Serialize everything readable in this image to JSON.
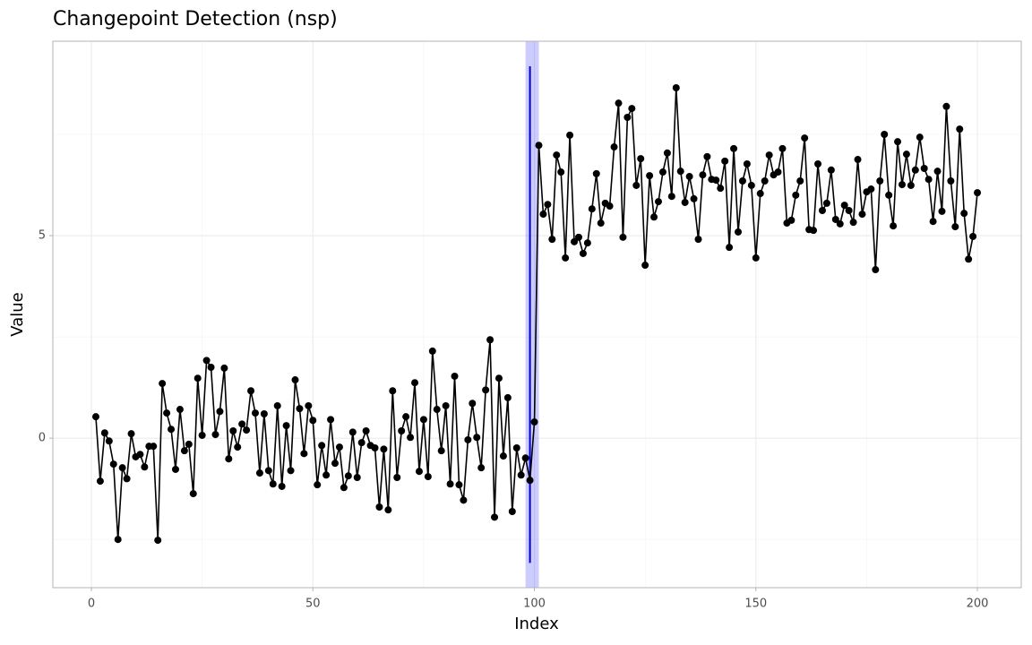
{
  "chart_data": {
    "type": "line",
    "title": "Changepoint Detection (nsp)",
    "xlabel": "Index",
    "ylabel": "Value",
    "x": [
      1,
      2,
      3,
      4,
      5,
      6,
      7,
      8,
      9,
      10,
      11,
      12,
      13,
      14,
      15,
      16,
      17,
      18,
      19,
      20,
      21,
      22,
      23,
      24,
      25,
      26,
      27,
      28,
      29,
      30,
      31,
      32,
      33,
      34,
      35,
      36,
      37,
      38,
      39,
      40,
      41,
      42,
      43,
      44,
      45,
      46,
      47,
      48,
      49,
      50,
      51,
      52,
      53,
      54,
      55,
      56,
      57,
      58,
      59,
      60,
      61,
      62,
      63,
      64,
      65,
      66,
      67,
      68,
      69,
      70,
      71,
      72,
      73,
      74,
      75,
      76,
      77,
      78,
      79,
      80,
      81,
      82,
      83,
      84,
      85,
      86,
      87,
      88,
      89,
      90,
      91,
      92,
      93,
      94,
      95,
      96,
      97,
      98,
      99,
      100,
      101,
      102,
      103,
      104,
      105,
      106,
      107,
      108,
      109,
      110,
      111,
      112,
      113,
      114,
      115,
      116,
      117,
      118,
      119,
      120,
      121,
      122,
      123,
      124,
      125,
      126,
      127,
      128,
      129,
      130,
      131,
      132,
      133,
      134,
      135,
      136,
      137,
      138,
      139,
      140,
      141,
      142,
      143,
      144,
      145,
      146,
      147,
      148,
      149,
      150,
      151,
      152,
      153,
      154,
      155,
      156,
      157,
      158,
      159,
      160,
      161,
      162,
      163,
      164,
      165,
      166,
      167,
      168,
      169,
      170,
      171,
      172,
      173,
      174,
      175,
      176,
      177,
      178,
      179,
      180,
      181,
      182,
      183,
      184,
      185,
      186,
      187,
      188,
      189,
      190,
      191,
      192,
      193,
      194,
      195,
      196,
      197,
      198,
      199,
      200
    ],
    "series": [
      {
        "color": "#000000",
        "values": [
          0.53,
          -1.06,
          0.13,
          -0.07,
          -0.64,
          -2.5,
          -0.73,
          -1.0,
          0.11,
          -0.46,
          -0.4,
          -0.71,
          -0.2,
          -0.2,
          -2.52,
          1.35,
          0.62,
          0.22,
          -0.77,
          0.71,
          -0.31,
          -0.15,
          -1.37,
          1.48,
          0.07,
          1.92,
          1.75,
          0.09,
          0.66,
          1.73,
          -0.51,
          0.18,
          -0.22,
          0.35,
          0.2,
          1.17,
          0.62,
          -0.86,
          0.6,
          -0.8,
          -1.13,
          0.8,
          -1.19,
          0.31,
          -0.8,
          1.44,
          0.73,
          -0.38,
          0.8,
          0.44,
          -1.15,
          -0.18,
          -0.91,
          0.46,
          -0.62,
          -0.22,
          -1.22,
          -0.93,
          0.15,
          -0.97,
          -0.11,
          0.18,
          -0.18,
          -0.24,
          -1.7,
          -0.27,
          -1.77,
          1.17,
          -0.97,
          0.18,
          0.53,
          0.02,
          1.37,
          -0.82,
          0.46,
          -0.95,
          2.15,
          0.71,
          -0.31,
          0.8,
          -1.13,
          1.53,
          -1.15,
          -1.53,
          -0.04,
          0.86,
          0.02,
          -0.73,
          1.19,
          2.43,
          -1.95,
          1.48,
          -0.44,
          1.0,
          -1.81,
          -0.24,
          -0.91,
          -0.49,
          -1.04,
          0.4,
          7.23,
          5.53,
          5.77,
          4.91,
          6.99,
          6.57,
          4.45,
          7.48,
          4.85,
          4.96,
          4.56,
          4.82,
          5.66,
          6.53,
          5.31,
          5.8,
          5.73,
          7.19,
          8.27,
          4.96,
          7.92,
          8.14,
          6.24,
          6.9,
          4.27,
          6.48,
          5.46,
          5.84,
          6.57,
          7.04,
          5.97,
          8.65,
          6.59,
          5.82,
          6.46,
          5.91,
          4.91,
          6.5,
          6.95,
          6.39,
          6.37,
          6.17,
          6.84,
          4.71,
          7.15,
          5.09,
          6.35,
          6.77,
          6.24,
          4.45,
          6.04,
          6.35,
          6.99,
          6.5,
          6.57,
          7.15,
          5.31,
          5.38,
          6.0,
          6.35,
          7.41,
          5.15,
          5.13,
          6.77,
          5.62,
          5.8,
          6.62,
          5.4,
          5.29,
          5.75,
          5.62,
          5.33,
          6.88,
          5.53,
          6.08,
          6.15,
          4.16,
          6.35,
          7.5,
          6.0,
          5.24,
          7.32,
          6.26,
          7.01,
          6.24,
          6.62,
          7.43,
          6.66,
          6.39,
          5.35,
          6.59,
          5.6,
          8.19,
          6.35,
          5.22,
          7.63,
          5.55,
          4.42,
          4.98,
          6.06
        ]
      }
    ],
    "changepoint": {
      "location": 99,
      "interval": [
        98,
        101
      ],
      "ylim": [
        -3.08,
        9.18
      ],
      "color": "#0000cc",
      "fill": "#0000ff"
    },
    "xlim": [
      -8.7,
      209.9
    ],
    "ylim": [
      -3.69,
      9.8
    ],
    "xticks": [
      0,
      50,
      100,
      150,
      200
    ],
    "yticks": [
      0,
      5
    ],
    "x_minor_grid": [
      25,
      75,
      125,
      175
    ],
    "y_minor_grid": [
      -2.5,
      2.5,
      7.5
    ],
    "grid": true
  }
}
